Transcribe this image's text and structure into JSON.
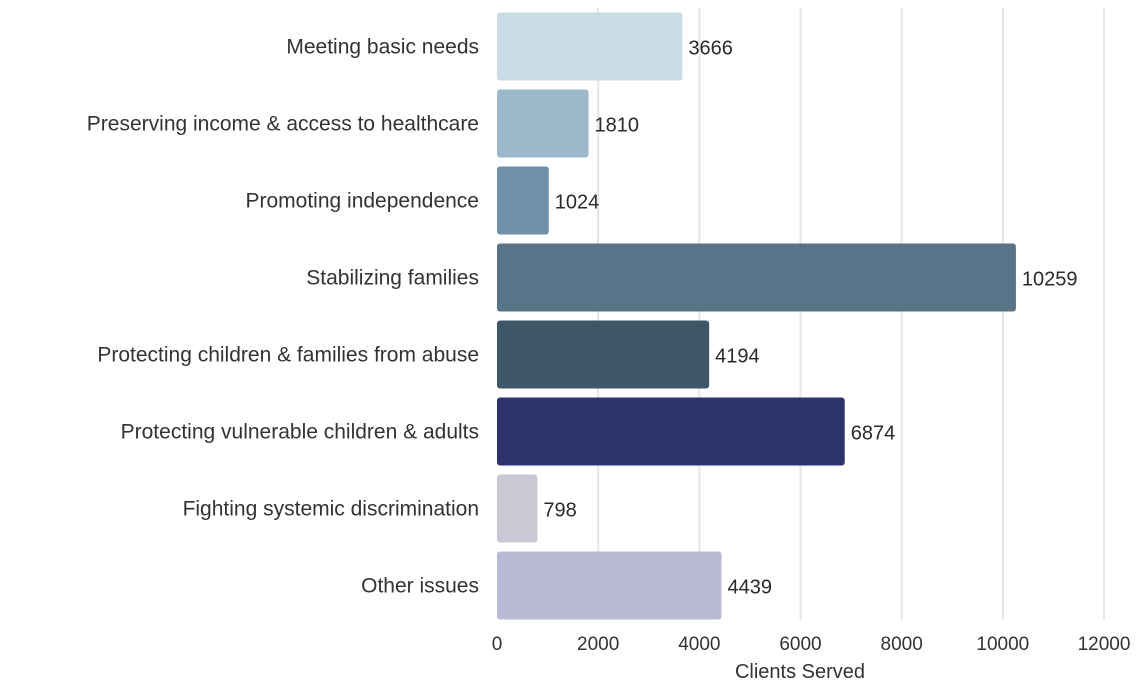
{
  "chart_data": {
    "type": "bar",
    "orientation": "horizontal",
    "categories": [
      "Meeting basic needs",
      "Preserving income & access to healthcare",
      "Promoting independence",
      "Stabilizing families",
      "Protecting children & families from abuse",
      "Protecting vulnerable children & adults",
      "Fighting systemic discrimination",
      "Other issues"
    ],
    "values": [
      3666,
      1810,
      1024,
      10259,
      4194,
      6874,
      798,
      4439
    ],
    "value_labels": [
      "3666",
      "1810",
      "1024",
      "10259",
      "4194",
      "6874",
      "798",
      "4439"
    ],
    "colors": [
      "#c8dbe6",
      "#9db7cb",
      "#6f8fab",
      "#587489",
      "#3d5767",
      "#2e336e",
      "#c9c9d6",
      "#b9bbd6"
    ],
    "xlabel": "Clients Served",
    "ylabel": "",
    "xlim": [
      0,
      12000
    ],
    "xticks": [
      0,
      2000,
      4000,
      6000,
      8000,
      10000,
      12000
    ],
    "xtick_labels": [
      "0",
      "2000",
      "4000",
      "6000",
      "8000",
      "10000",
      "12000"
    ],
    "grid": "vertical"
  }
}
